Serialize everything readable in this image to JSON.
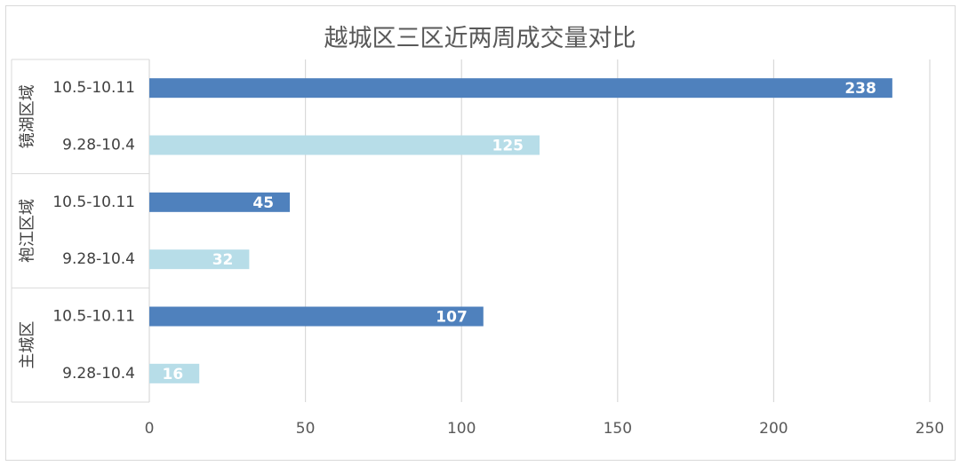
{
  "chart_data": {
    "type": "bar",
    "orientation": "horizontal",
    "title": "越城区三区近两周成交量对比",
    "groups": [
      {
        "name": "镜湖区域",
        "bars": [
          {
            "label": "10.5-10.11",
            "value": 238,
            "color": "#4f81bd"
          },
          {
            "label": "9.28-10.4",
            "value": 125,
            "color": "#b7dde8"
          }
        ]
      },
      {
        "name": "袍江区域",
        "bars": [
          {
            "label": "10.5-10.11",
            "value": 45,
            "color": "#4f81bd"
          },
          {
            "label": "9.28-10.4",
            "value": 32,
            "color": "#b7dde8"
          }
        ]
      },
      {
        "name": "主城区",
        "bars": [
          {
            "label": "10.5-10.11",
            "value": 107,
            "color": "#4f81bd"
          },
          {
            "label": "9.28-10.4",
            "value": 16,
            "color": "#b7dde8"
          }
        ]
      }
    ],
    "xlim": [
      0,
      250
    ],
    "x_ticks": [
      "0",
      "50",
      "100",
      "150",
      "200",
      "250"
    ],
    "grid": true,
    "legend": "none",
    "data_labels": "inside-end"
  }
}
